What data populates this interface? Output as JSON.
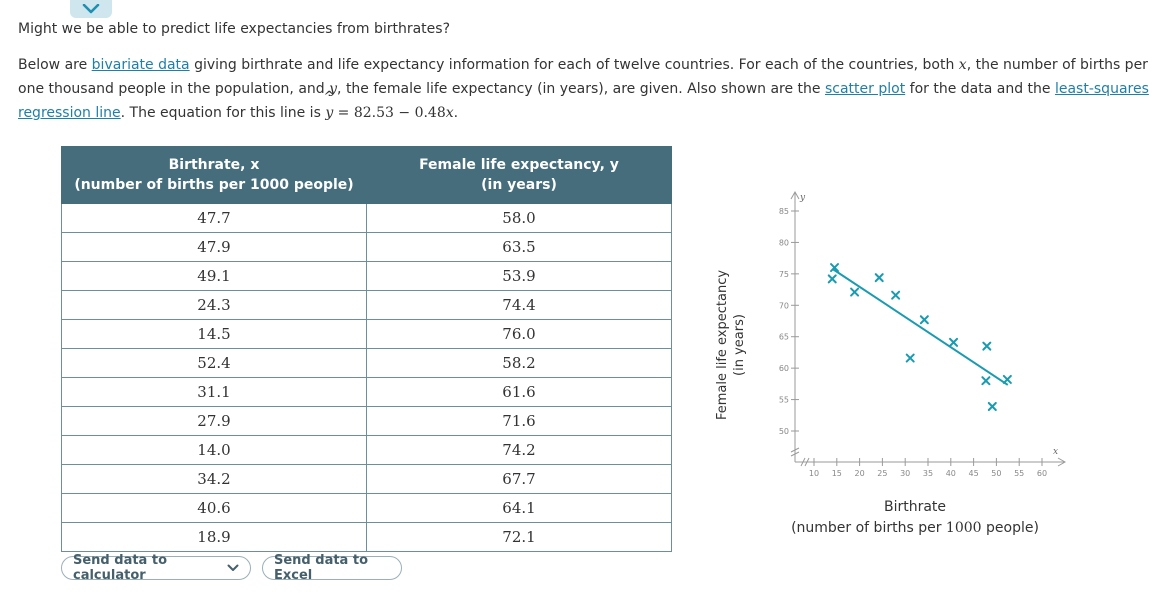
{
  "header": {
    "question": "Might we be able to predict life expectancies from birthrates?"
  },
  "intro": {
    "t1": "Below are ",
    "link_bivariate": "bivariate data",
    "t2": " giving birthrate and life expectancy information for each of twelve countries. For each of the countries, both ",
    "x_var": "x",
    "t3": ", the number of births per one thousand people in the population, and ",
    "y_var": "y",
    "t4": ", the female life expectancy (in years), are given. Also shown are the ",
    "link_scatter": "scatter plot",
    "t5": " for the data and the ",
    "link_lsr": "least-squares regression line",
    "t6": ". The equation for this line is ",
    "eq_y": "y",
    "eq_hat": "^",
    "eq_rest": " = 82.53 − 0.48",
    "eq_x": "x",
    "t7": "."
  },
  "table": {
    "col1_line1": "Birthrate, x",
    "col1_line2": "(number of births per 1000 people)",
    "col2_line1": "Female life expectancy, y",
    "col2_line2": "(in years)",
    "rows": [
      [
        "47.7",
        "58.0"
      ],
      [
        "47.9",
        "63.5"
      ],
      [
        "49.1",
        "53.9"
      ],
      [
        "24.3",
        "74.4"
      ],
      [
        "14.5",
        "76.0"
      ],
      [
        "52.4",
        "58.2"
      ],
      [
        "31.1",
        "61.6"
      ],
      [
        "27.9",
        "71.6"
      ],
      [
        "14.0",
        "74.2"
      ],
      [
        "34.2",
        "67.7"
      ],
      [
        "40.6",
        "64.1"
      ],
      [
        "18.9",
        "72.1"
      ]
    ]
  },
  "buttons": {
    "calc": "Send data to calculator",
    "excel": "Send data to Excel"
  },
  "chart_data": {
    "type": "scatter",
    "xlabel_line1": "Birthrate",
    "xlabel_line2_pre": "(number of births per ",
    "xlabel_line2_num": "1000",
    "xlabel_line2_post": " people)",
    "ylabel_line1": "Female life expectancy",
    "ylabel_line2": "(in years)",
    "x_axis_var": "x",
    "y_axis_var": "y",
    "xticks": [
      10,
      15,
      20,
      25,
      30,
      35,
      40,
      45,
      50,
      55,
      60
    ],
    "yticks": [
      50,
      55,
      60,
      65,
      70,
      75,
      80,
      85
    ],
    "xlim": [
      10,
      60
    ],
    "ylim": [
      50,
      85
    ],
    "axis_break": true,
    "grid": false,
    "points": [
      {
        "x": 47.7,
        "y": 58.0
      },
      {
        "x": 47.9,
        "y": 63.5
      },
      {
        "x": 49.1,
        "y": 53.9
      },
      {
        "x": 24.3,
        "y": 74.4
      },
      {
        "x": 14.5,
        "y": 76.0
      },
      {
        "x": 52.4,
        "y": 58.2
      },
      {
        "x": 31.1,
        "y": 61.6
      },
      {
        "x": 27.9,
        "y": 71.6
      },
      {
        "x": 14.0,
        "y": 74.2
      },
      {
        "x": 34.2,
        "y": 67.7
      },
      {
        "x": 40.6,
        "y": 64.1
      },
      {
        "x": 18.9,
        "y": 72.1
      }
    ],
    "regression": {
      "intercept": 82.53,
      "slope": -0.48,
      "x_from": 14,
      "x_to": 52.5
    },
    "colors": {
      "points": "#1a9bb0",
      "line": "#1a9bb0",
      "axis": "#9a9a9a",
      "tick_text": "#888888"
    }
  }
}
